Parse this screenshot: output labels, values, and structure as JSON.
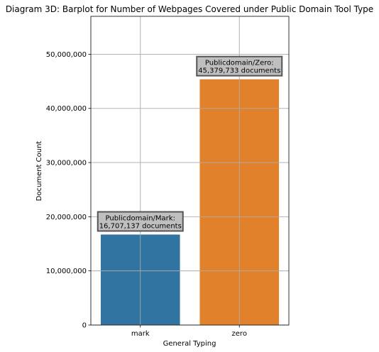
{
  "chart_data": {
    "type": "bar",
    "title": "Diagram 3D: Barplot for Number of Webpages Covered under Public Domain Tool Type",
    "xlabel": "General Typing",
    "ylabel": "Document Count",
    "categories": [
      "mark",
      "zero"
    ],
    "values": [
      16707137,
      45379733
    ],
    "colors": [
      "#3274a1",
      "#e1812c"
    ],
    "ylim": [
      0,
      57000000
    ],
    "yticks": [
      0,
      10000000,
      20000000,
      30000000,
      40000000,
      50000000
    ],
    "ytick_labels": [
      "0",
      "10,000,000",
      "20,000,000",
      "30,000,000",
      "40,000,000",
      "50,000,000"
    ],
    "grid": true,
    "annotations": [
      {
        "line1": "Publicdomain/Mark:",
        "line2": "16,707,137 documents"
      },
      {
        "line1": "Publicdomain/Zero:",
        "line2": "45,379,733 documents"
      }
    ]
  }
}
